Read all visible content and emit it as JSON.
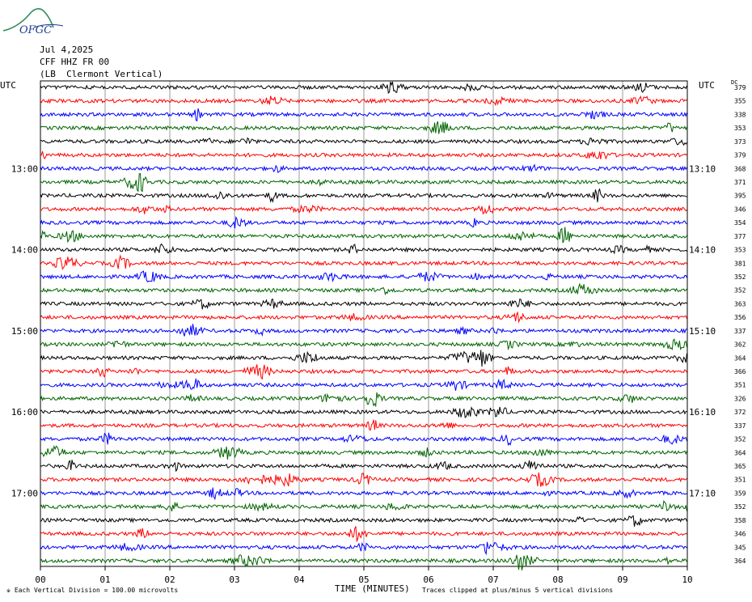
{
  "header": {
    "logo_text": "OFGC",
    "date": "Jul 4,2025",
    "station": "CFF HHZ FR 00",
    "location": "(LB  Clermont Vertical)",
    "left_tz": "UTC",
    "right_tz": "UTC",
    "dc_label": "DC"
  },
  "footer": {
    "scale_note": "Each Vertical Division =  100.00 microvolts",
    "xlabel": "TIME (MINUTES)",
    "clip_note": "Traces clipped at plus/minus 5 vertical divisions"
  },
  "colors": {
    "trace_cycle": [
      "#000000",
      "#ff0000",
      "#0000ff",
      "#006400"
    ],
    "grid": "#9a9a9a"
  },
  "chart_data": {
    "type": "line",
    "title": "",
    "xlabel": "TIME (MINUTES)",
    "ylabel": "",
    "xlim": [
      0,
      10
    ],
    "x_ticks": [
      "00",
      "01",
      "02",
      "03",
      "04",
      "05",
      "06",
      "07",
      "08",
      "09",
      "10"
    ],
    "left_time_labels": [
      "13:00",
      "14:00",
      "15:00",
      "16:00",
      "17:00"
    ],
    "left_time_label_rows": [
      6,
      12,
      18,
      24,
      30
    ],
    "right_time_labels": [
      "13:10",
      "14:10",
      "15:10",
      "16:10",
      "17:10"
    ],
    "right_time_label_rows": [
      6,
      12,
      18,
      24,
      30
    ],
    "dc_values": [
      "379",
      "355",
      "338",
      "353",
      "373",
      "379",
      "368",
      "371",
      "395",
      "346",
      "354",
      "377",
      "353",
      "381",
      "352",
      "352",
      "363",
      "356",
      "337",
      "362",
      "364",
      "366",
      "351",
      "326",
      "372",
      "337",
      "352",
      "364",
      "365",
      "351",
      "359",
      "352",
      "358",
      "346",
      "345",
      "364"
    ],
    "trace_count": 36,
    "grid": true
  }
}
